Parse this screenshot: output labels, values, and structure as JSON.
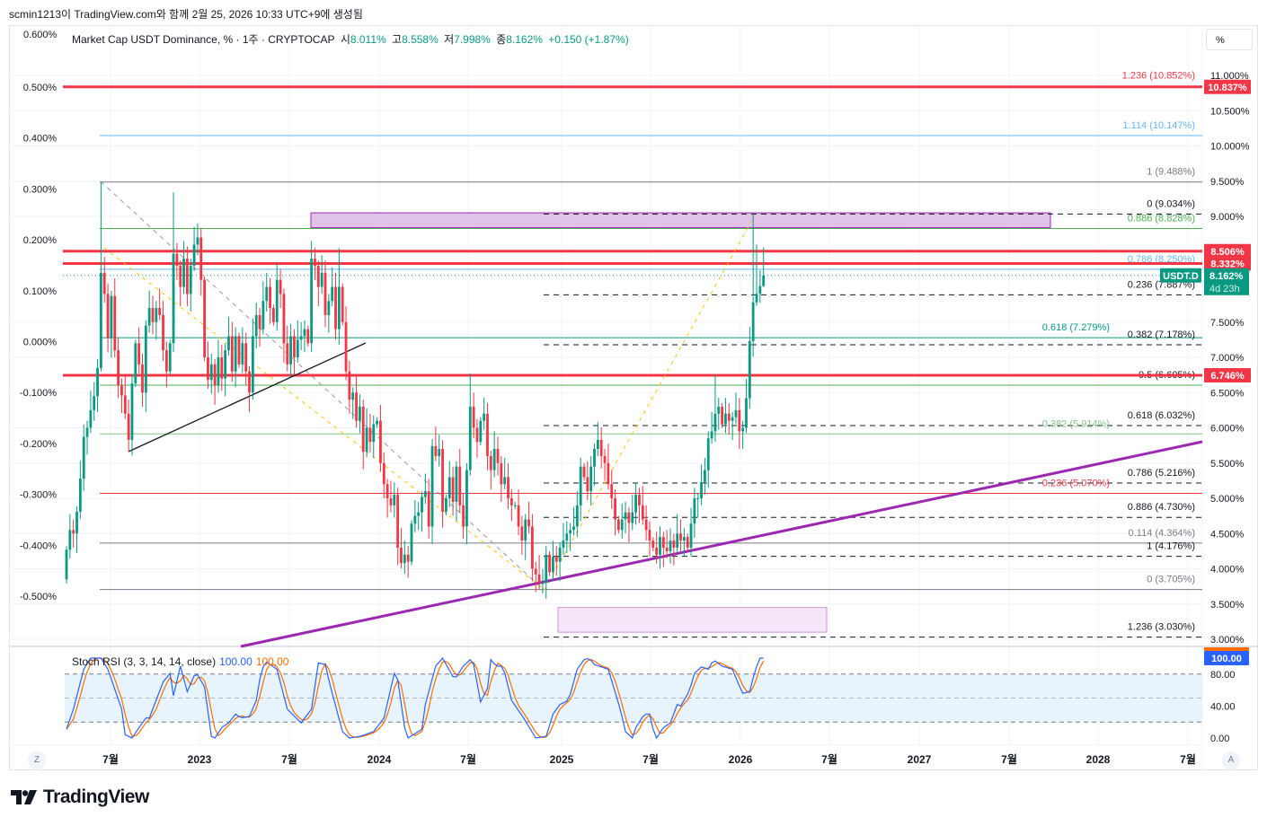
{
  "header": {
    "attribution": "scmin1213이 TradingView.com와 함께 2월 25, 2026 10:33 UTC+9에 생성됨",
    "left_axis_top": "0.600%",
    "symbol": "Market Cap USDT Dominance, % · 1주 · CRYPTOCAP",
    "open_label": "시",
    "open": "8.011%",
    "high_label": "고",
    "high": "8.558%",
    "low_label": "저",
    "low": "7.998%",
    "close_label": "종",
    "close": "8.162%",
    "change": "+0.150 (+1.87%)"
  },
  "percent_button": "%",
  "footer": {
    "brand": "TradingView",
    "z_button": "Z",
    "a_button": "A"
  },
  "colors": {
    "up": "#089981",
    "down": "#F23645",
    "trend": "#9C27B0",
    "stoch_k": "#2962FF",
    "stoch_d": "#FF6D00"
  },
  "chart_data": {
    "type": "candlestick",
    "timeframe": "1W",
    "closes": [
      4.27,
      4.55,
      4.5,
      4.81,
      5.28,
      5.87,
      6.0,
      6.25,
      6.45,
      6.85,
      8.2,
      7.9,
      7.27,
      7.87,
      7.1,
      6.6,
      6.46,
      6.2,
      5.83,
      6.63,
      7.2,
      6.9,
      6.5,
      7.45,
      7.7,
      7.5,
      7.7,
      7.6,
      7.1,
      6.8,
      7.2,
      8.47,
      8.3,
      8.0,
      8.4,
      7.9,
      8.3,
      8.6,
      8.7,
      8.1,
      7.0,
      6.68,
      6.9,
      6.6,
      7.0,
      6.7,
      7.1,
      7.3,
      6.8,
      7.3,
      6.9,
      7.2,
      6.8,
      6.5,
      7.3,
      7.6,
      7.4,
      7.8,
      8.0,
      7.7,
      7.5,
      8.1,
      7.9,
      7.2,
      6.9,
      7.3,
      7.0,
      7.25,
      7.3,
      7.4,
      7.2,
      8.4,
      8.3,
      8.0,
      8.2,
      7.6,
      7.8,
      8.0,
      7.4,
      8.0,
      7.5,
      6.8,
      6.4,
      6.5,
      6.1,
      6.3,
      5.66,
      6.0,
      5.8,
      6.05,
      6.1,
      5.5,
      5.2,
      5.0,
      4.9,
      5.05,
      4.3,
      4.08,
      4.2,
      4.1,
      4.64,
      4.75,
      4.8,
      5.02,
      5.1,
      4.6,
      5.74,
      5.6,
      5.7,
      4.81,
      5.0,
      5.3,
      4.95,
      5.45,
      4.9,
      4.6,
      5.4,
      6.3,
      6.0,
      5.8,
      6.1,
      6.2,
      5.6,
      5.4,
      5.7,
      5.5,
      5.2,
      5.3,
      5.0,
      4.9,
      4.9,
      4.6,
      4.4,
      4.7,
      4.6,
      4.0,
      3.92,
      3.8,
      3.8,
      4.2,
      3.95,
      4.17,
      4.1,
      4.3,
      4.4,
      4.5,
      4.55,
      4.6,
      4.9,
      5.45,
      5.3,
      5.1,
      5.45,
      5.7,
      5.83,
      5.6,
      5.5,
      5.2,
      5.0,
      4.7,
      4.55,
      4.7,
      4.8,
      4.65,
      4.8,
      5.05,
      4.9,
      4.7,
      4.55,
      4.4,
      4.3,
      4.2,
      4.45,
      4.3,
      4.25,
      4.4,
      4.3,
      4.5,
      4.4,
      4.45,
      4.3,
      4.64,
      5.0,
      5.0,
      5.23,
      5.4,
      5.85,
      5.95,
      6.2,
      6.3,
      6.05,
      6.2,
      6.1,
      6.15,
      6.25,
      5.95,
      6.0,
      6.42,
      7.23,
      7.78,
      7.9,
      8.011,
      8.162
    ],
    "first_open": 3.85,
    "high_overrides": {
      "10": 9.49,
      "31": 9.34,
      "37": 8.85,
      "38": 8.9,
      "71": 8.65,
      "79": 8.55,
      "117": 6.77,
      "188": 6.75,
      "199": 9.03,
      "200": 8.6,
      "202": 8.558
    },
    "low_overrides": {
      "0": 3.79,
      "18": 5.66,
      "137": 3.7,
      "195": 5.7,
      "202": 7.998
    },
    "last_candle": {
      "open": 8.011,
      "high": 8.558,
      "low": 7.998,
      "close": 8.162
    },
    "price_axis": [
      "11.000%",
      "10.500%",
      "10.000%",
      "9.500%",
      "9.000%",
      "7.500%",
      "7.000%",
      "6.500%",
      "6.000%",
      "5.500%",
      "5.000%",
      "4.500%",
      "4.000%",
      "3.500%",
      "3.000%"
    ],
    "price_axis_values": [
      11,
      10.5,
      10,
      9.5,
      9,
      7.5,
      7,
      6.5,
      6,
      5.5,
      5,
      4.5,
      4,
      3.5,
      3
    ],
    "left_axis": [
      "0.500%",
      "0.400%",
      "0.300%",
      "0.200%",
      "0.100%",
      "0.000%",
      "-0.100%",
      "-0.200%",
      "-0.300%",
      "-0.400%",
      "-0.500%"
    ],
    "left_axis_values": [
      0.5,
      0.4,
      0.3,
      0.2,
      0.1,
      0,
      -0.1,
      -0.2,
      -0.3,
      -0.4,
      -0.5
    ],
    "time_axis": [
      "7월",
      "2023",
      "7월",
      "2024",
      "7월",
      "2025",
      "7월",
      "2026",
      "7월",
      "2027",
      "7월",
      "2028",
      "7월"
    ],
    "fib_levels": [
      {
        "price": 10.852,
        "label": "1.236 (10.852%)",
        "color": "#F23645",
        "style": "none",
        "set": "a"
      },
      {
        "price": 10.147,
        "label": "1.114 (10.147%)",
        "color": "#64B5F6",
        "style": "solid",
        "set": "a"
      },
      {
        "price": 9.488,
        "label": "1 (9.488%)",
        "color": "#787B86",
        "style": "solid",
        "set": "a"
      },
      {
        "price": 9.034,
        "label": "0 (9.034%)",
        "color": "#131722",
        "style": "dash",
        "set": "b"
      },
      {
        "price": 8.828,
        "label": "0.886 (8.828%)",
        "color": "#4CAF50",
        "style": "solid",
        "set": "a"
      },
      {
        "price": 8.25,
        "label": "0.786 (8.250%)",
        "color": "#64B5F6",
        "style": "solid",
        "set": "a"
      },
      {
        "price": 7.887,
        "label": "0.236 (7.887%)",
        "color": "#131722",
        "style": "dash",
        "set": "b"
      },
      {
        "price": 7.279,
        "label": "0.618 (7.279%)",
        "color": "#089981",
        "style": "solid",
        "set": "a"
      },
      {
        "price": 7.178,
        "label": "0.382 (7.178%)",
        "color": "#131722",
        "style": "dash",
        "set": "b"
      },
      {
        "price": 6.605,
        "label": "0.5 (6.605%)",
        "color": "#131722",
        "style": "dash",
        "set": "b"
      },
      {
        "price": 6.032,
        "label": "0.618 (6.032%)",
        "color": "#131722",
        "style": "dash",
        "set": "b"
      },
      {
        "price": 5.914,
        "label": "0.382 (5.914%)",
        "color": "#81C784",
        "style": "solid",
        "set": "a"
      },
      {
        "price": 5.216,
        "label": "0.786 (5.216%)",
        "color": "#131722",
        "style": "dash",
        "set": "b"
      },
      {
        "price": 5.07,
        "label": "0.236 (5.070%)",
        "color": "#F23645",
        "style": "solid",
        "set": "a"
      },
      {
        "price": 4.73,
        "label": "0.886 (4.730%)",
        "color": "#131722",
        "style": "dash",
        "set": "b"
      },
      {
        "price": 4.364,
        "label": "0.114 (4.364%)",
        "color": "#787B86",
        "style": "solid",
        "set": "a"
      },
      {
        "price": 4.176,
        "label": "1 (4.176%)",
        "color": "#131722",
        "style": "dash",
        "set": "b"
      },
      {
        "price": 3.705,
        "label": "0 (3.705%)",
        "color": "#787B86",
        "style": "solid",
        "set": "a"
      },
      {
        "price": 3.03,
        "label": "1.236 (3.030%)",
        "color": "#131722",
        "style": "dash",
        "set": "b"
      }
    ],
    "horizontal_lines": [
      {
        "price": 10.837,
        "tag": "10.837%"
      },
      {
        "price": 8.506,
        "tag": "8.506%"
      },
      {
        "price": 8.332,
        "tag": "8.332%"
      },
      {
        "price": 6.746,
        "tag": "6.746%"
      }
    ],
    "green_extra_line": 6.605,
    "current_price": {
      "price": 8.162,
      "symbol_tag": "USDT.D",
      "tag": "8.162%",
      "countdown": "4d 23h"
    },
    "zones": [
      {
        "top": 9.05,
        "bottom": 8.84,
        "fill": "#E1C3EA",
        "stroke": "#9C27B0"
      },
      {
        "top": 3.45,
        "bottom": 3.1,
        "fill": "#F6E6FA",
        "stroke": "#CE93D8"
      }
    ],
    "stoch": {
      "title": "Stoch RSI (3, 3, 14, 14, close)",
      "k_value": "100.00",
      "d_value": "100.00",
      "tag": "100.00",
      "ticks": [
        "80.00",
        "40.00",
        "0.00"
      ],
      "tick_values": [
        80,
        40,
        0
      ],
      "bands": [
        80,
        50,
        20
      ],
      "k_keypoints": [
        [
          0,
          11
        ],
        [
          2,
          36
        ],
        [
          5,
          86
        ],
        [
          7,
          100
        ],
        [
          10,
          100
        ],
        [
          12,
          86
        ],
        [
          16,
          36
        ],
        [
          17,
          4
        ],
        [
          19,
          0
        ],
        [
          21,
          13
        ],
        [
          23,
          25
        ],
        [
          24,
          25
        ],
        [
          28,
          70
        ],
        [
          30,
          81
        ],
        [
          31,
          53
        ],
        [
          33,
          90
        ],
        [
          35,
          58
        ],
        [
          37.5,
          83
        ],
        [
          40,
          64
        ],
        [
          42,
          2
        ],
        [
          43,
          0
        ],
        [
          45,
          13
        ],
        [
          47,
          19
        ],
        [
          49,
          30
        ],
        [
          50.5,
          25
        ],
        [
          53,
          27
        ],
        [
          55,
          47
        ],
        [
          56.5,
          86
        ],
        [
          58,
          95
        ],
        [
          61,
          86
        ],
        [
          64,
          36
        ],
        [
          68,
          19
        ],
        [
          71,
          36
        ],
        [
          73,
          94
        ],
        [
          75,
          92
        ],
        [
          76.5,
          64
        ],
        [
          80,
          8
        ],
        [
          82,
          0
        ],
        [
          85,
          2
        ],
        [
          89,
          8
        ],
        [
          92,
          25
        ],
        [
          95,
          81
        ],
        [
          96,
          73
        ],
        [
          98,
          13
        ],
        [
          99,
          0
        ],
        [
          103,
          11
        ],
        [
          104,
          42
        ],
        [
          107,
          90
        ],
        [
          109,
          100
        ],
        [
          112.5,
          73
        ],
        [
          115,
          90
        ],
        [
          117,
          98
        ],
        [
          118,
          92
        ],
        [
          120,
          45
        ],
        [
          122,
          62
        ],
        [
          123,
          98
        ],
        [
          124.5,
          90
        ],
        [
          126.5,
          90
        ],
        [
          129,
          47
        ],
        [
          132.5,
          25
        ],
        [
          136,
          0
        ],
        [
          139,
          2
        ],
        [
          141,
          30
        ],
        [
          143,
          42
        ],
        [
          145.5,
          47
        ],
        [
          148,
          86
        ],
        [
          150,
          98
        ],
        [
          151.5,
          100
        ],
        [
          153,
          92
        ],
        [
          157,
          86
        ],
        [
          160.5,
          36
        ],
        [
          162,
          8
        ],
        [
          164,
          0
        ],
        [
          165,
          13
        ],
        [
          167.5,
          30
        ],
        [
          169,
          30
        ],
        [
          170.5,
          2
        ],
        [
          171,
          0
        ],
        [
          173,
          13
        ],
        [
          175,
          19
        ],
        [
          177,
          42
        ],
        [
          178,
          40
        ],
        [
          180,
          55
        ],
        [
          181,
          66
        ],
        [
          182,
          81
        ],
        [
          184,
          89
        ],
        [
          186,
          86
        ],
        [
          187.5,
          98
        ],
        [
          190,
          90
        ],
        [
          193,
          86
        ],
        [
          194.5,
          70
        ],
        [
          196,
          56
        ],
        [
          198,
          58
        ],
        [
          199.5,
          84
        ],
        [
          201,
          100
        ],
        [
          202,
          100
        ]
      ]
    }
  }
}
